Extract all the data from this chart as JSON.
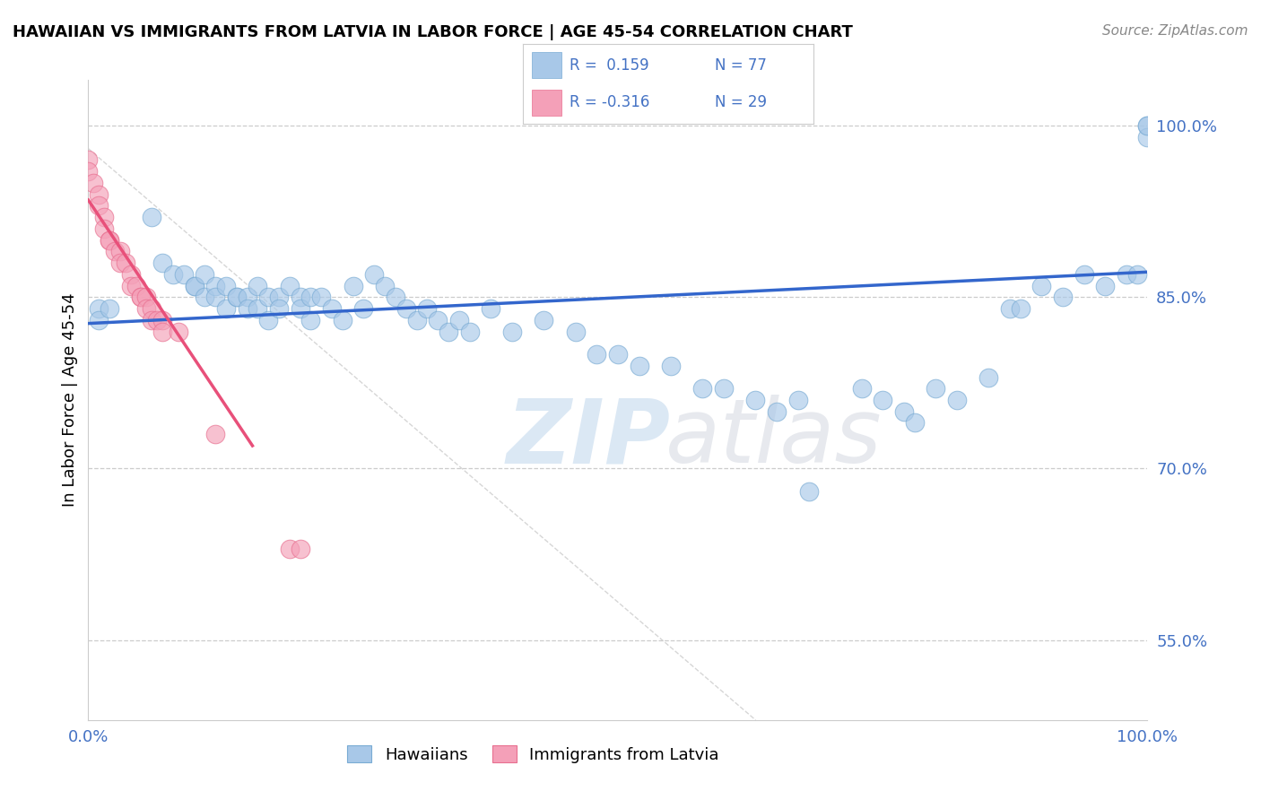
{
  "title": "HAWAIIAN VS IMMIGRANTS FROM LATVIA IN LABOR FORCE | AGE 45-54 CORRELATION CHART",
  "source": "Source: ZipAtlas.com",
  "ylabel": "In Labor Force | Age 45-54",
  "y_ticks": [
    0.55,
    0.7,
    0.85,
    1.0
  ],
  "y_tick_labels": [
    "55.0%",
    "70.0%",
    "85.0%",
    "100.0%"
  ],
  "x_range": [
    0.0,
    1.0
  ],
  "y_range": [
    0.48,
    1.04
  ],
  "legend_r_blue": "R =  0.159",
  "legend_n_blue": "N = 77",
  "legend_r_pink": "R = -0.316",
  "legend_n_pink": "N = 29",
  "blue_color": "#a8c8e8",
  "pink_color": "#f4a0b8",
  "blue_edge_color": "#7aacd4",
  "pink_edge_color": "#e87090",
  "blue_line_color": "#3366CC",
  "pink_line_color": "#E8507A",
  "legend_text_color": "#4472C4",
  "watermark_zip_color": "#b0cce8",
  "watermark_atlas_color": "#b0b8c8",
  "blue_scatter_x": [
    0.01,
    0.01,
    0.02,
    0.06,
    0.07,
    0.08,
    0.09,
    0.1,
    0.1,
    0.11,
    0.11,
    0.12,
    0.12,
    0.13,
    0.13,
    0.14,
    0.14,
    0.15,
    0.15,
    0.16,
    0.16,
    0.17,
    0.17,
    0.18,
    0.18,
    0.19,
    0.2,
    0.2,
    0.21,
    0.21,
    0.22,
    0.23,
    0.24,
    0.25,
    0.26,
    0.27,
    0.28,
    0.29,
    0.3,
    0.31,
    0.32,
    0.33,
    0.34,
    0.35,
    0.36,
    0.38,
    0.4,
    0.43,
    0.46,
    0.48,
    0.5,
    0.52,
    0.55,
    0.58,
    0.6,
    0.63,
    0.65,
    0.67,
    0.68,
    0.73,
    0.75,
    0.77,
    0.78,
    0.8,
    0.82,
    0.85,
    0.87,
    0.88,
    0.9,
    0.92,
    0.94,
    0.96,
    0.98,
    0.99,
    1.0,
    1.0,
    1.0
  ],
  "blue_scatter_y": [
    0.84,
    0.83,
    0.84,
    0.92,
    0.88,
    0.87,
    0.87,
    0.86,
    0.86,
    0.87,
    0.85,
    0.86,
    0.85,
    0.86,
    0.84,
    0.85,
    0.85,
    0.85,
    0.84,
    0.86,
    0.84,
    0.85,
    0.83,
    0.85,
    0.84,
    0.86,
    0.85,
    0.84,
    0.85,
    0.83,
    0.85,
    0.84,
    0.83,
    0.86,
    0.84,
    0.87,
    0.86,
    0.85,
    0.84,
    0.83,
    0.84,
    0.83,
    0.82,
    0.83,
    0.82,
    0.84,
    0.82,
    0.83,
    0.82,
    0.8,
    0.8,
    0.79,
    0.79,
    0.77,
    0.77,
    0.76,
    0.75,
    0.76,
    0.68,
    0.77,
    0.76,
    0.75,
    0.74,
    0.77,
    0.76,
    0.78,
    0.84,
    0.84,
    0.86,
    0.85,
    0.87,
    0.86,
    0.87,
    0.87,
    1.0,
    0.99,
    1.0
  ],
  "pink_scatter_x": [
    0.0,
    0.0,
    0.005,
    0.01,
    0.01,
    0.015,
    0.015,
    0.02,
    0.02,
    0.025,
    0.03,
    0.03,
    0.035,
    0.04,
    0.04,
    0.045,
    0.05,
    0.05,
    0.055,
    0.055,
    0.06,
    0.06,
    0.065,
    0.07,
    0.07,
    0.085,
    0.12,
    0.19,
    0.2
  ],
  "pink_scatter_y": [
    0.97,
    0.96,
    0.95,
    0.94,
    0.93,
    0.92,
    0.91,
    0.9,
    0.9,
    0.89,
    0.89,
    0.88,
    0.88,
    0.87,
    0.86,
    0.86,
    0.85,
    0.85,
    0.85,
    0.84,
    0.84,
    0.83,
    0.83,
    0.83,
    0.82,
    0.82,
    0.73,
    0.63,
    0.63
  ],
  "blue_trend_x": [
    0.0,
    1.0
  ],
  "blue_trend_y": [
    0.827,
    0.872
  ],
  "pink_trend_x": [
    0.0,
    0.155
  ],
  "pink_trend_y": [
    0.935,
    0.72
  ],
  "ref_line_x": [
    0.0,
    0.63
  ],
  "ref_line_y": [
    0.98,
    0.48
  ]
}
